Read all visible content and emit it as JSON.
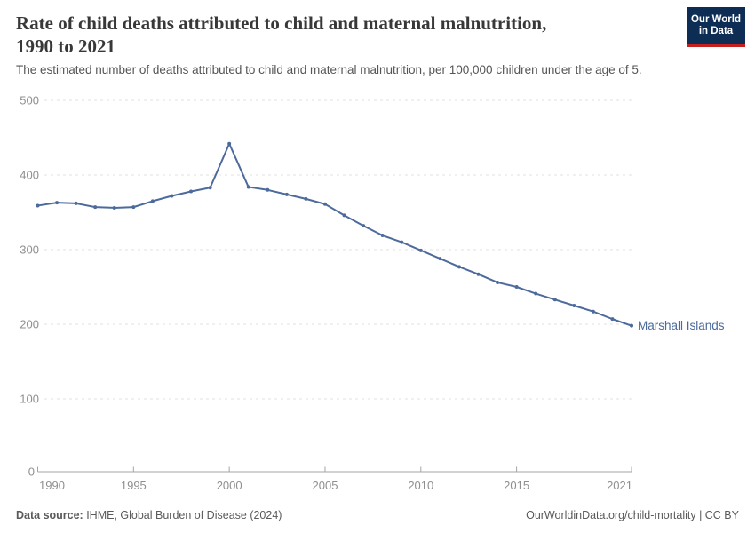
{
  "header": {
    "title_line1": "Rate of child deaths attributed to child and maternal malnutrition,",
    "title_line2": "1990 to 2021",
    "subtitle": "The estimated number of deaths attributed to child and maternal malnutrition, per 100,000 children under the age of 5.",
    "logo": {
      "line1": "Our World",
      "line2": "in Data",
      "bg_color": "#0e2d54",
      "accent_color": "#c6201e"
    }
  },
  "footer": {
    "source_label": "Data source:",
    "source_text": " IHME, Global Burden of Disease (2024)",
    "credit": "OurWorldinData.org/child-mortality | CC BY"
  },
  "chart_data": {
    "type": "line",
    "title": "Rate of child deaths attributed to child and maternal malnutrition, 1990 to 2021",
    "xlabel": "",
    "ylabel": "",
    "ylim": [
      0,
      500
    ],
    "yticks": [
      0,
      100,
      200,
      300,
      400,
      500
    ],
    "xticks": [
      1990,
      1995,
      2000,
      2005,
      2010,
      2015,
      2021
    ],
    "grid": "horizontal-dashed",
    "legend_position": "line-end-label",
    "x": [
      1990,
      1991,
      1992,
      1993,
      1994,
      1995,
      1996,
      1997,
      1998,
      1999,
      2000,
      2001,
      2002,
      2003,
      2004,
      2005,
      2006,
      2007,
      2008,
      2009,
      2010,
      2011,
      2012,
      2013,
      2014,
      2015,
      2016,
      2017,
      2018,
      2019,
      2020,
      2021
    ],
    "series": [
      {
        "name": "Marshall Islands",
        "color": "#4c6a9c",
        "values": [
          359,
          363,
          362,
          357,
          356,
          357,
          365,
          372,
          378,
          383,
          442,
          384,
          380,
          374,
          368,
          361,
          346,
          332,
          319,
          310,
          299,
          288,
          277,
          267,
          256,
          250,
          241,
          233,
          225,
          217,
          207,
          198
        ]
      }
    ],
    "colors": {
      "gridline": "#e0e0e0",
      "axis": "#a5a5a5",
      "tick_label": "#8f8f8f"
    }
  }
}
